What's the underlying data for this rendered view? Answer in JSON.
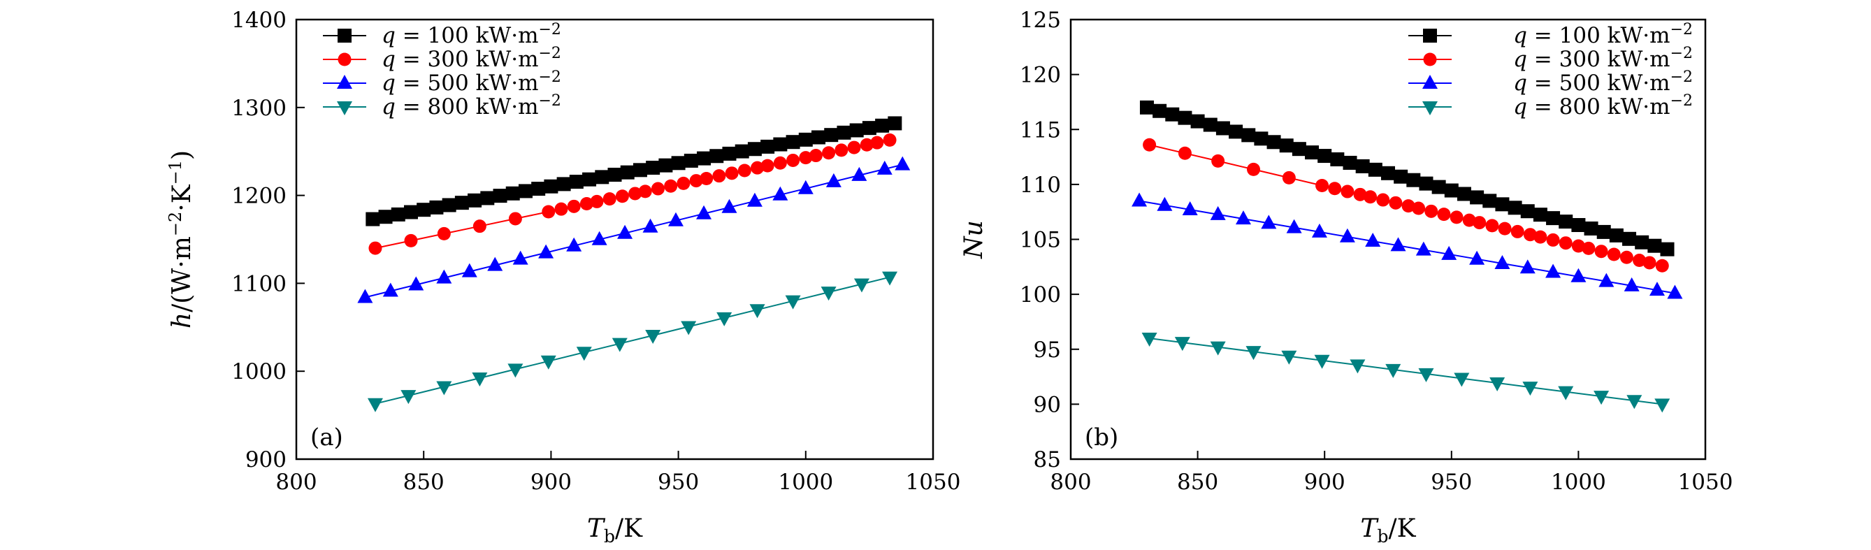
{
  "chart_data": [
    {
      "type": "line",
      "panel_label": "(a)",
      "xlabel": "Tb/K",
      "ylabel": "h/(W·m−2·K−1)",
      "xlim": [
        800,
        1050
      ],
      "ylim": [
        900,
        1400
      ],
      "xticks": [
        800,
        850,
        900,
        950,
        1000,
        1050
      ],
      "yticks": [
        900,
        1000,
        1100,
        1200,
        1300,
        1400
      ],
      "legend_position": "top-left",
      "series": [
        {
          "name": "q = 100 kW·m−2",
          "color": "#000000",
          "marker": "square",
          "x_start": 830,
          "x_end": 1035,
          "step": 5,
          "y_start": 1173,
          "y_end": 1282
        },
        {
          "name": "q = 300 kW·m−2",
          "color": "#ff0000",
          "marker": "circle",
          "x": [
            831,
            845,
            858,
            872,
            886,
            899,
            904,
            909,
            914,
            918,
            923,
            928,
            933,
            937,
            942,
            947,
            952,
            957,
            961,
            966,
            971,
            976,
            981,
            985,
            990,
            995,
            1000,
            1004,
            1009,
            1014,
            1019,
            1024,
            1028,
            1033
          ],
          "y_start": 1140,
          "y_end": 1263
        },
        {
          "name": "q = 500 kW·m−2",
          "color": "#0000ff",
          "marker": "triangle-up",
          "x": [
            827,
            837,
            847,
            858,
            868,
            878,
            888,
            898,
            909,
            919,
            929,
            939,
            949,
            960,
            970,
            980,
            990,
            1000,
            1011,
            1021,
            1031,
            1038
          ],
          "y_start": 1084,
          "y_end": 1235
        },
        {
          "name": "q = 800 kW·m−2",
          "color": "#008080",
          "marker": "triangle-down",
          "x": [
            831,
            844,
            858,
            872,
            886,
            899,
            913,
            927,
            940,
            954,
            968,
            981,
            995,
            1009,
            1022,
            1033
          ],
          "y_start": 963,
          "y_end": 1107
        }
      ]
    },
    {
      "type": "line",
      "panel_label": "(b)",
      "xlabel": "Tb/K",
      "ylabel": "Nu",
      "xlim": [
        800,
        1050
      ],
      "ylim": [
        85,
        125
      ],
      "xticks": [
        800,
        850,
        900,
        950,
        1000,
        1050
      ],
      "yticks": [
        85,
        90,
        95,
        100,
        105,
        110,
        115,
        120,
        125
      ],
      "legend_position": "top-right",
      "series": [
        {
          "name": "q = 100 kW·m−2",
          "color": "#000000",
          "marker": "square",
          "x_start": 830,
          "x_end": 1035,
          "step": 5,
          "y_start": 117.0,
          "y_end": 104.1
        },
        {
          "name": "q = 300 kW·m−2",
          "color": "#ff0000",
          "marker": "circle",
          "x": [
            831,
            845,
            858,
            872,
            886,
            899,
            904,
            909,
            914,
            918,
            923,
            928,
            933,
            937,
            942,
            947,
            952,
            957,
            961,
            966,
            971,
            976,
            981,
            985,
            990,
            995,
            1000,
            1004,
            1009,
            1014,
            1019,
            1024,
            1028,
            1033
          ],
          "y_start": 113.6,
          "y_end": 102.6
        },
        {
          "name": "q = 500 kW·m−2",
          "color": "#0000ff",
          "marker": "triangle-up",
          "x": [
            827,
            837,
            847,
            858,
            868,
            878,
            888,
            898,
            909,
            919,
            929,
            939,
            949,
            960,
            970,
            980,
            990,
            1000,
            1011,
            1021,
            1031,
            1038
          ],
          "y_start": 108.5,
          "y_end": 100.1
        },
        {
          "name": "q = 800 kW·m−2",
          "color": "#008080",
          "marker": "triangle-down",
          "x": [
            831,
            844,
            858,
            872,
            886,
            899,
            913,
            927,
            940,
            954,
            968,
            981,
            995,
            1009,
            1022,
            1033
          ],
          "y_start": 96.0,
          "y_end": 90.0
        }
      ]
    }
  ]
}
